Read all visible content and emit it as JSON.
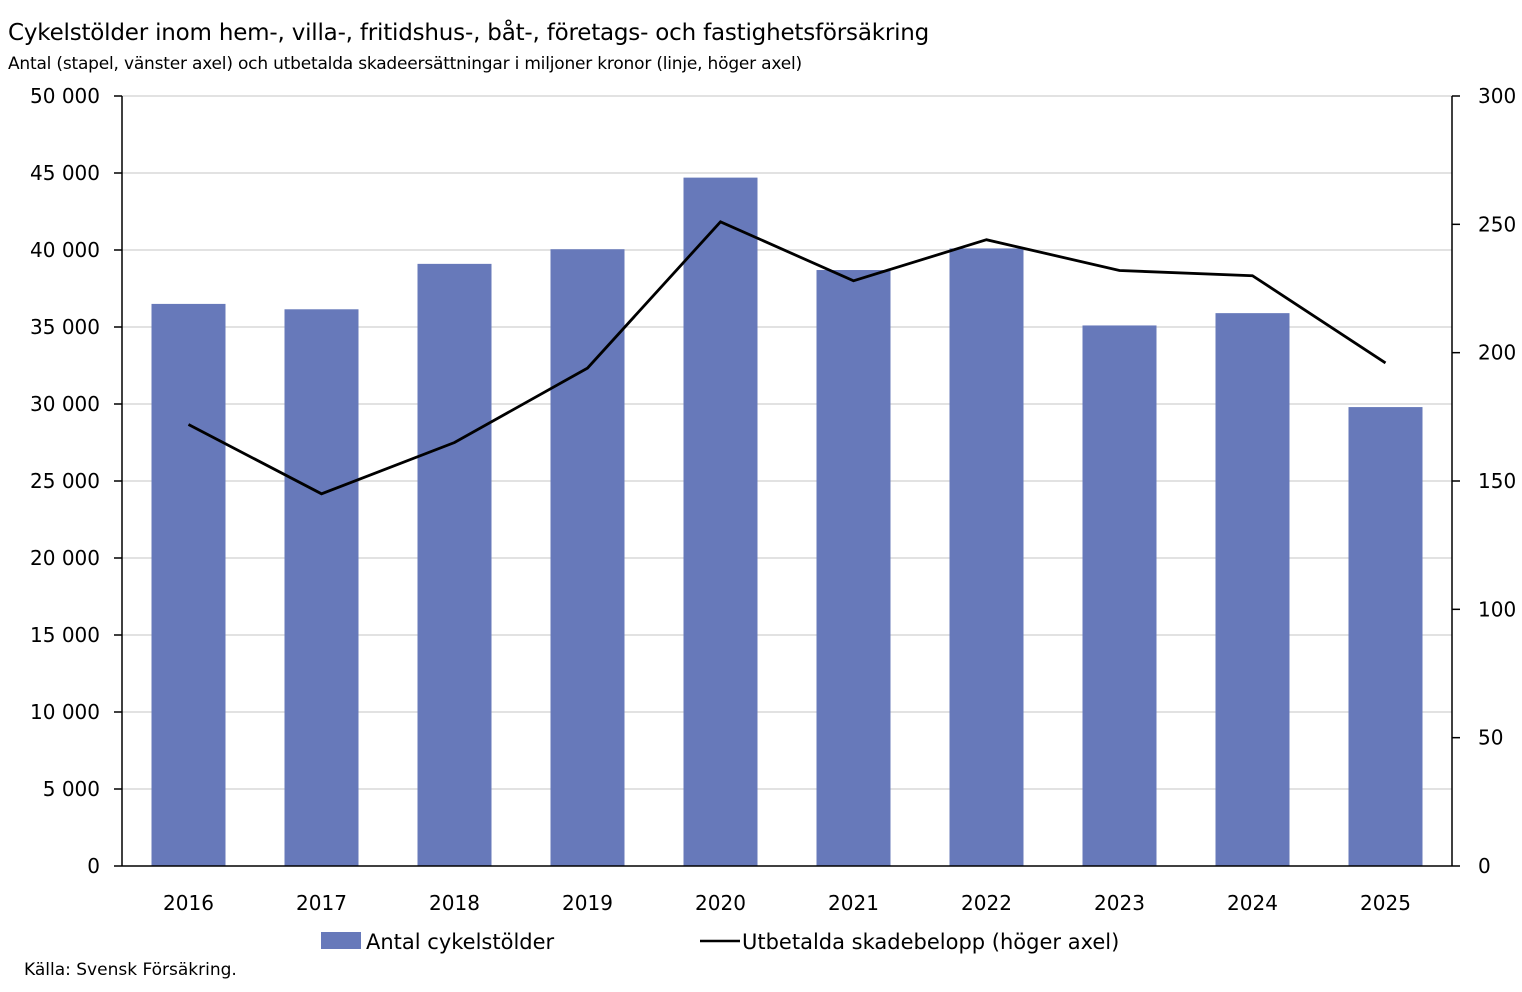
{
  "chart_data": {
    "type": "bar",
    "title": "Cykelstölder inom hem-, villa-, fritidshus-, båt-, företags- och fastighetsförsäkring",
    "subtitle": "Antal (stapel, vänster axel) och utbetalda skadeersättningar i miljoner kronor (linje, höger axel)",
    "source": "Källa: Svensk Försäkring.",
    "categories": [
      "2016",
      "2017",
      "2018",
      "2019",
      "2020",
      "2021",
      "2022",
      "2023",
      "2024",
      "2025"
    ],
    "series": [
      {
        "name": "Antal cykelstölder",
        "type": "bar",
        "axis": "left",
        "color": "#6779ba",
        "values": [
          36500,
          36150,
          39100,
          40050,
          44700,
          38700,
          40100,
          35100,
          35900,
          29800
        ]
      },
      {
        "name": "Utbetalda skadebelopp (höger axel)",
        "type": "line",
        "axis": "right",
        "color": "#000000",
        "values": [
          172,
          145,
          165,
          194,
          251,
          228,
          244,
          232,
          230,
          196
        ]
      }
    ],
    "y_left": {
      "min": 0,
      "max": 50000,
      "step": 5000,
      "tick_labels": [
        "0",
        "5 000",
        "10 000",
        "15 000",
        "20 000",
        "25 000",
        "30 000",
        "35 000",
        "40 000",
        "45 000",
        "50 000"
      ]
    },
    "y_right": {
      "min": 0,
      "max": 300,
      "step": 50,
      "tick_labels": [
        "0",
        "50",
        "100",
        "150",
        "200",
        "250",
        "300"
      ]
    },
    "grid": true,
    "legend_position": "bottom"
  }
}
